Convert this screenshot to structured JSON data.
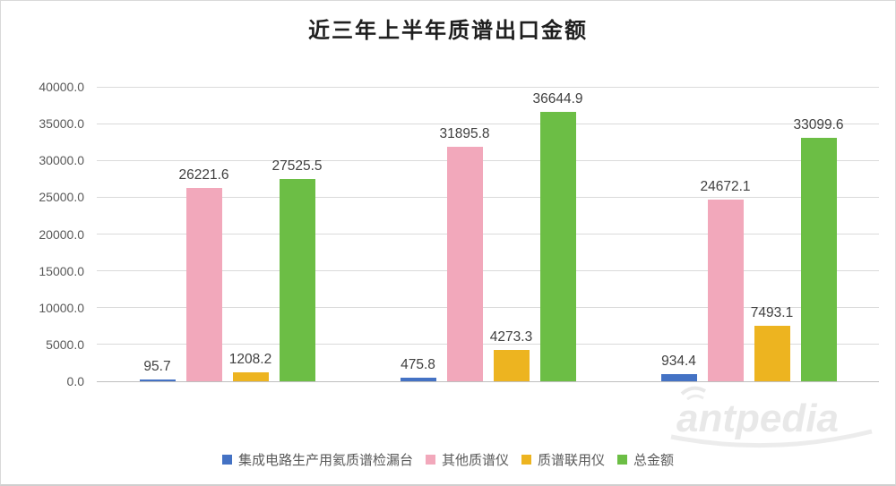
{
  "title": "近三年上半年质谱出口金额",
  "watermark": "antpedia",
  "chart_data": {
    "type": "bar",
    "title": "近三年上半年质谱出口金额",
    "x_axis_labels": [],
    "num_groups": 3,
    "series": [
      {
        "name": "集成电路生产用氦质谱检漏台",
        "color": "#4472C4",
        "values": [
          95.7,
          475.8,
          934.4
        ]
      },
      {
        "name": "其他质谱仪",
        "color": "#F2A8BB",
        "values": [
          26221.6,
          31895.8,
          24672.1
        ]
      },
      {
        "name": "质谱联用仪",
        "color": "#EDB420",
        "values": [
          1208.2,
          4273.3,
          7493.1
        ]
      },
      {
        "name": "总金额",
        "color": "#6CBE45",
        "values": [
          27525.5,
          36644.9,
          33099.6
        ]
      }
    ],
    "y_axis": {
      "min": 0,
      "max": 40000,
      "step": 5000,
      "tick_labels": [
        "0.0",
        "5000.0",
        "10000.0",
        "15000.0",
        "20000.0",
        "25000.0",
        "30000.0",
        "35000.0",
        "40000.0"
      ]
    },
    "grid": true,
    "data_labels": true,
    "legend_position": "bottom",
    "colors": {
      "grid": "#dadada",
      "axis": "#bfbfbf",
      "tick_text": "#595959",
      "label_text": "#404040",
      "watermark": "#e8e8e8"
    }
  }
}
